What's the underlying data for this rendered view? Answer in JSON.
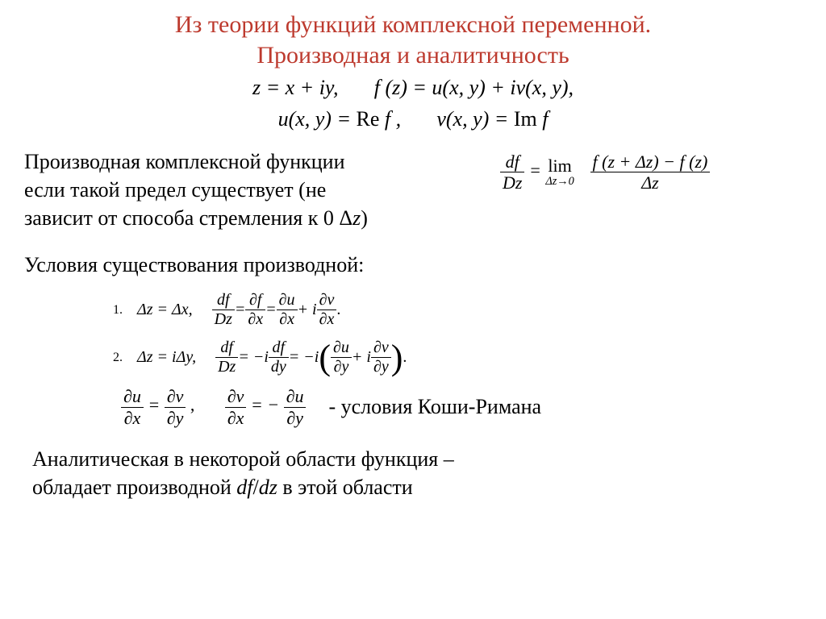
{
  "colors": {
    "title": "#bd3a2e",
    "text": "#000000",
    "background": "#ffffff"
  },
  "fontsizes": {
    "title": 30,
    "body": 26,
    "eq_main": 26,
    "eq_small": 22,
    "cond_list": 20
  },
  "title_line1": "Из теории функций комплексной переменной.",
  "title_line2": "Производная и аналитичность",
  "eq1_a": "z = x + iy,",
  "eq1_b": "f (z) = u(x, y) + iv(x, y),",
  "eq2_a": "u(x, y) = ",
  "eq2_re": "Re",
  "eq2_mid": " f ,",
  "eq2_gap": "   ",
  "eq2_b": "v(x, y) = ",
  "eq2_im": "Im",
  "eq2_end": " f",
  "p1_l1": "Производная комплексной функции",
  "p1_l2": "если такой предел существует (не",
  "p1_l3_a": "зависит от способа стремления к 0 Δ",
  "p1_l3_z": "z",
  "p1_l3_b": ")",
  "deriv_lhs_num": "df",
  "deriv_lhs_den": "Dz",
  "deriv_eq": " = ",
  "deriv_lim": "lim",
  "deriv_limsub": "Δz→0",
  "deriv_rhs_num": "f (z + Δz) − f (z)",
  "deriv_rhs_den": "Δz",
  "cond_title": "Условия существования производной:",
  "c1_num": "1.",
  "c1_a": "Δz = Δx,",
  "c1_f_num": "df",
  "c1_f_den": "Dz",
  "c1_eq1": " = ",
  "c1_g_num": "∂f",
  "c1_g_den": "∂x",
  "c1_eq2": " = ",
  "c1_h_num": "∂u",
  "c1_h_den": "∂x",
  "c1_plus": " + i",
  "c1_i_num": "∂v",
  "c1_i_den": "∂x",
  "c1_dot": ".",
  "c2_num": "2.",
  "c2_a": "Δz = iΔy,",
  "c2_f_num": "df",
  "c2_f_den": "Dz",
  "c2_eq1": " = −i",
  "c2_g_num": "df",
  "c2_g_den": "dy",
  "c2_eq2": " = −i",
  "c2_h_num": "∂u",
  "c2_h_den": "∂y",
  "c2_plus": " + i",
  "c2_i_num": "∂v",
  "c2_i_den": "∂y",
  "c2_dot": ".",
  "cr_a_num": "∂u",
  "cr_a_den": "∂x",
  "cr_eq1": " = ",
  "cr_b_num": "∂v",
  "cr_b_den": "∂y",
  "cr_comma": ",",
  "cr_c_num": "∂v",
  "cr_c_den": "∂x",
  "cr_eq2": " = −",
  "cr_d_num": "∂u",
  "cr_d_den": "∂y",
  "cr_label": "- условия Коши-Римана",
  "final_l1": "Аналитическая в некоторой области функция –",
  "final_l2a": "обладает производной ",
  "final_dfz": "df",
  "final_slash": "/",
  "final_dz": "dz",
  "final_l2b": " в этой области"
}
